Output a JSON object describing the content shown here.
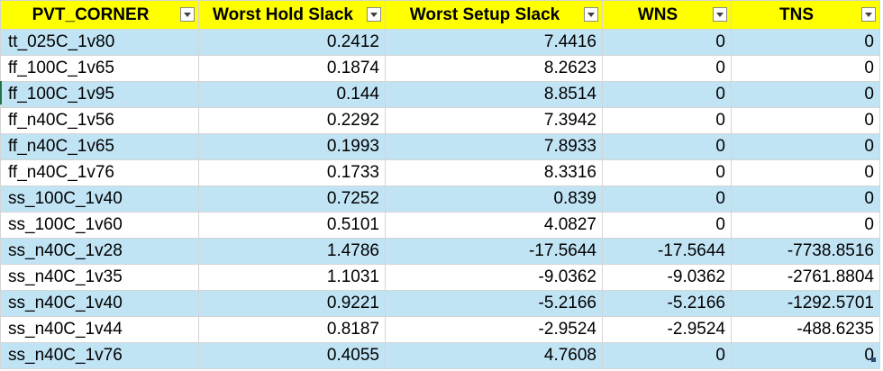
{
  "table": {
    "headers": [
      "PVT_CORNER",
      "Worst Hold Slack",
      "Worst Setup Slack",
      "WNS",
      "TNS"
    ],
    "rows": [
      [
        "tt_025C_1v80",
        "0.2412",
        "7.4416",
        "0",
        "0"
      ],
      [
        "ff_100C_1v65",
        "0.1874",
        "8.2623",
        "0",
        "0"
      ],
      [
        "ff_100C_1v95",
        "0.144",
        "8.8514",
        "0",
        "0"
      ],
      [
        "ff_n40C_1v56",
        "0.2292",
        "7.3942",
        "0",
        "0"
      ],
      [
        "ff_n40C_1v65",
        "0.1993",
        "7.8933",
        "0",
        "0"
      ],
      [
        "ff_n40C_1v76",
        "0.1733",
        "8.3316",
        "0",
        "0"
      ],
      [
        "ss_100C_1v40",
        "0.7252",
        "0.839",
        "0",
        "0"
      ],
      [
        "ss_100C_1v60",
        "0.5101",
        "4.0827",
        "0",
        "0"
      ],
      [
        "ss_n40C_1v28",
        "1.4786",
        "-17.5644",
        "-17.5644",
        "-7738.8516"
      ],
      [
        "ss_n40C_1v35",
        "1.1031",
        "-9.0362",
        "-9.0362",
        "-2761.8804"
      ],
      [
        "ss_n40C_1v40",
        "0.9221",
        "-5.2166",
        "-5.2166",
        "-1292.5701"
      ],
      [
        "ss_n40C_1v44",
        "0.8187",
        "-2.9524",
        "-2.9524",
        "-488.6235"
      ],
      [
        "ss_n40C_1v76",
        "0.4055",
        "4.7608",
        "0",
        "0"
      ]
    ]
  },
  "colors": {
    "header_fill": "#ffff00",
    "band_fill": "#c1e4f5",
    "row_fill": "#ffffff",
    "gridline": "#d4d4d4"
  },
  "icons": {
    "filter_button": "filter-dropdown-icon"
  }
}
